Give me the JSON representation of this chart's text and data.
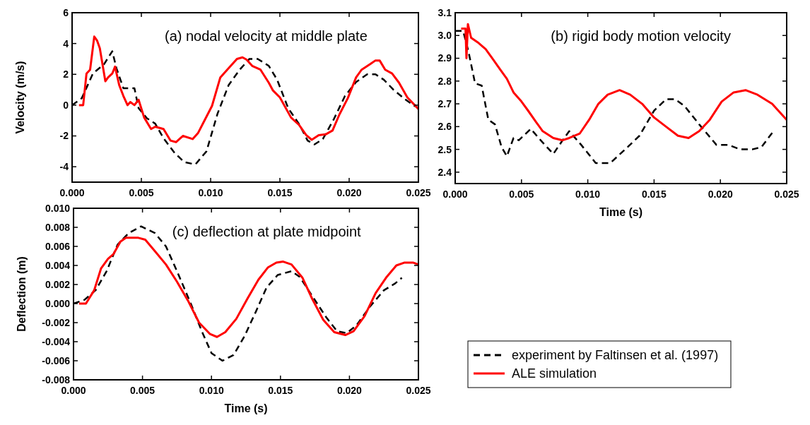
{
  "chart_data": [
    {
      "type": "line",
      "title": "(a) nodal velocity at middle plate",
      "ylabel": "Velocity (m/s)",
      "xlim": [
        0,
        0.025
      ],
      "xticks": [
        {
          "value": 0,
          "label": "0.000"
        },
        {
          "value": 0.005,
          "label": "0.005"
        },
        {
          "value": 0.01,
          "label": "0.010"
        },
        {
          "value": 0.015,
          "label": "0.015"
        },
        {
          "value": 0.02,
          "label": "0.020"
        },
        {
          "value": 0.025,
          "label": "0.025"
        }
      ],
      "ylim": [
        -5,
        6
      ],
      "yticks": [
        -4,
        -2,
        0,
        2,
        4,
        6
      ],
      "grid": false,
      "legend": false,
      "marker": "none",
      "series": [
        {
          "color": "#000000",
          "line_style": "dashed",
          "x": [
            0,
            0.0007,
            0.0015,
            0.0023,
            0.0029,
            0.0032,
            0.0037,
            0.0045,
            0.0048,
            0.0054,
            0.006,
            0.0066,
            0.0074,
            0.0081,
            0.0089,
            0.0097,
            0.0105,
            0.0113,
            0.0121,
            0.0128,
            0.0134,
            0.0142,
            0.0148,
            0.0156,
            0.0164,
            0.017,
            0.0175,
            0.0181,
            0.0189,
            0.0197,
            0.0205,
            0.0213,
            0.0219,
            0.0225,
            0.0232,
            0.024,
            0.0248
          ],
          "values": [
            0,
            0.45,
            2.05,
            2.65,
            3.5,
            2.4,
            1.1,
            1.1,
            -0.2,
            -0.85,
            -1.2,
            -2.15,
            -3.1,
            -3.7,
            -3.85,
            -3.0,
            -0.55,
            1.3,
            2.3,
            3.0,
            3.0,
            2.55,
            1.65,
            -0.2,
            -1.25,
            -2.3,
            -2.55,
            -2.2,
            -0.9,
            0.6,
            1.5,
            2.0,
            2.0,
            1.65,
            1.0,
            0.4,
            -0.1
          ]
        },
        {
          "color": "#ff0000",
          "line_style": "solid",
          "x": [
            0.0005,
            0.0008,
            0.00104,
            0.0013,
            0.0016,
            0.0018,
            0.002,
            0.0024,
            0.0026,
            0.0029,
            0.0031,
            0.0034,
            0.0037,
            0.004,
            0.0042,
            0.0045,
            0.0048,
            0.0052,
            0.0057,
            0.006,
            0.0066,
            0.0071,
            0.0075,
            0.008,
            0.0087,
            0.0091,
            0.0097,
            0.0101,
            0.0107,
            0.0112,
            0.0119,
            0.0123,
            0.0126,
            0.013,
            0.0136,
            0.0142,
            0.0145,
            0.015,
            0.0158,
            0.0164,
            0.0169,
            0.0173,
            0.0178,
            0.0183,
            0.0188,
            0.0193,
            0.0199,
            0.0205,
            0.0209,
            0.0215,
            0.0219,
            0.0222,
            0.0226,
            0.0231,
            0.0236,
            0.0242,
            0.025
          ],
          "values": [
            0,
            0,
            2.05,
            2.3,
            4.45,
            4.2,
            3.7,
            1.55,
            1.8,
            2.05,
            2.5,
            1.3,
            0.6,
            0,
            0.2,
            0,
            0.35,
            -0.8,
            -1.55,
            -1.4,
            -1.55,
            -2.3,
            -2.4,
            -2.0,
            -2.2,
            -1.8,
            -0.75,
            -0.05,
            1.8,
            2.3,
            3.0,
            3.1,
            2.95,
            2.55,
            2.3,
            1.45,
            0.95,
            0.5,
            -0.8,
            -1.3,
            -1.95,
            -2.25,
            -1.95,
            -1.9,
            -1.65,
            -0.6,
            0.45,
            1.8,
            2.3,
            2.65,
            2.9,
            2.9,
            2.3,
            2.05,
            1.45,
            0.5,
            -0.25
          ]
        }
      ]
    },
    {
      "type": "line",
      "title": "(b) rigid body motion velocity",
      "xlabel": "Time (s)",
      "xlim": [
        0,
        0.025
      ],
      "xticks": [
        {
          "value": 0,
          "label": "0.000"
        },
        {
          "value": 0.005,
          "label": "0.005"
        },
        {
          "value": 0.01,
          "label": "0.010"
        },
        {
          "value": 0.015,
          "label": "0.015"
        },
        {
          "value": 0.02,
          "label": "0.020"
        },
        {
          "value": 0.025,
          "label": "0.025"
        }
      ],
      "ylim": [
        2.35,
        3.1
      ],
      "yticks": [
        2.4,
        2.5,
        2.6,
        2.7,
        2.8,
        2.9,
        {
          "value": 3.0,
          "label": "3.0"
        },
        3.1
      ],
      "grid": false,
      "legend": false,
      "marker": "none",
      "series": [
        {
          "color": "#000000",
          "line_style": "dashed",
          "x": [
            0,
            0.0006,
            0.001,
            0.0015,
            0.002,
            0.0025,
            0.003,
            0.0035,
            0.0039,
            0.0044,
            0.0048,
            0.0057,
            0.0066,
            0.0074,
            0.0081,
            0.0086,
            0.0095,
            0.0106,
            0.0117,
            0.013,
            0.0139,
            0.015,
            0.0159,
            0.0166,
            0.0173,
            0.0184,
            0.0197,
            0.0206,
            0.0215,
            0.0224,
            0.0231,
            0.024
          ],
          "values": [
            3.02,
            3.02,
            2.93,
            2.79,
            2.78,
            2.63,
            2.61,
            2.51,
            2.47,
            2.55,
            2.54,
            2.59,
            2.53,
            2.48,
            2.54,
            2.58,
            2.52,
            2.44,
            2.44,
            2.51,
            2.56,
            2.67,
            2.72,
            2.72,
            2.69,
            2.61,
            2.52,
            2.52,
            2.5,
            2.5,
            2.51,
            2.58
          ]
        },
        {
          "color": "#ff0000",
          "line_style": "solid",
          "x": [
            0.00045,
            0.00078,
            0.00085,
            0.00096,
            0.0012,
            0.0017,
            0.0023,
            0.0028,
            0.0034,
            0.0039,
            0.0044,
            0.005,
            0.0055,
            0.0061,
            0.0066,
            0.0074,
            0.0081,
            0.0086,
            0.0094,
            0.0101,
            0.0108,
            0.0115,
            0.0124,
            0.0132,
            0.0141,
            0.015,
            0.0159,
            0.0168,
            0.0176,
            0.0184,
            0.0192,
            0.0201,
            0.021,
            0.0219,
            0.0228,
            0.0239,
            0.025
          ],
          "values": [
            3.03,
            3.03,
            2.9,
            3.05,
            2.99,
            2.97,
            2.94,
            2.9,
            2.85,
            2.81,
            2.75,
            2.71,
            2.67,
            2.62,
            2.58,
            2.55,
            2.54,
            2.55,
            2.57,
            2.63,
            2.7,
            2.74,
            2.76,
            2.74,
            2.7,
            2.64,
            2.6,
            2.56,
            2.55,
            2.58,
            2.63,
            2.71,
            2.75,
            2.76,
            2.74,
            2.7,
            2.63
          ]
        }
      ]
    },
    {
      "type": "line",
      "title": "(c) deflection at plate midpoint",
      "xlabel": "Time (s)",
      "ylabel": "Deflection (m)",
      "xlim": [
        0,
        0.025
      ],
      "xticks": [
        {
          "value": 0,
          "label": "0.000"
        },
        {
          "value": 0.005,
          "label": "0.005"
        },
        {
          "value": 0.01,
          "label": "0.010"
        },
        {
          "value": 0.015,
          "label": "0.015"
        },
        {
          "value": 0.02,
          "label": "0.020"
        },
        {
          "value": 0.025,
          "label": "0.025"
        }
      ],
      "ylim": [
        -0.008,
        0.01
      ],
      "yticks": [
        {
          "value": -0.008,
          "label": "-0.008"
        },
        {
          "value": -0.006,
          "label": "-0.006"
        },
        {
          "value": -0.004,
          "label": "-0.004"
        },
        {
          "value": -0.002,
          "label": "-0.002"
        },
        {
          "value": 0,
          "label": "0.000"
        },
        {
          "value": 0.002,
          "label": "0.002"
        },
        {
          "value": 0.004,
          "label": "0.004"
        },
        {
          "value": 0.006,
          "label": "0.006"
        },
        {
          "value": 0.008,
          "label": "0.008"
        },
        {
          "value": 0.01,
          "label": "0.010"
        }
      ],
      "grid": false,
      "legend": "right",
      "marker": "none",
      "series": [
        {
          "name": "experiment by Faltinsen et al. (1997)",
          "color": "#000000",
          "line_style": "dashed",
          "x": [
            0,
            0.0008,
            0.0016,
            0.0024,
            0.0032,
            0.004,
            0.0049,
            0.0059,
            0.0067,
            0.0075,
            0.0085,
            0.0093,
            0.01,
            0.0108,
            0.0116,
            0.0124,
            0.0132,
            0.014,
            0.0148,
            0.0158,
            0.0164,
            0.0173,
            0.0183,
            0.0191,
            0.0198,
            0.0205,
            0.0215,
            0.0225,
            0.0233,
            0.0238
          ],
          "values": [
            0,
            0.0004,
            0.0014,
            0.0034,
            0.0062,
            0.0074,
            0.0081,
            0.0074,
            0.006,
            0.0034,
            0,
            -0.0029,
            -0.0052,
            -0.006,
            -0.0054,
            -0.0034,
            -0.0009,
            0.0017,
            0.003,
            0.0034,
            0.0028,
            0.0008,
            -0.0014,
            -0.0029,
            -0.0031,
            -0.0023,
            -0.0003,
            0.0014,
            0.0021,
            0.0027
          ]
        },
        {
          "name": "ALE simulation",
          "color": "#ff0000",
          "line_style": "solid",
          "x": [
            0.0004,
            0.0009,
            0.0015,
            0.002,
            0.0025,
            0.0029,
            0.0034,
            0.0038,
            0.0047,
            0.0052,
            0.0059,
            0.0067,
            0.0075,
            0.0083,
            0.0091,
            0.0099,
            0.0104,
            0.011,
            0.0118,
            0.0126,
            0.0134,
            0.0141,
            0.0147,
            0.0152,
            0.0158,
            0.0166,
            0.0173,
            0.0181,
            0.0189,
            0.0197,
            0.0203,
            0.0211,
            0.0219,
            0.0227,
            0.0234,
            0.024,
            0.0246,
            0.025
          ],
          "values": [
            0,
            0,
            0.0014,
            0.0037,
            0.0047,
            0.0052,
            0.0065,
            0.0069,
            0.0069,
            0.0067,
            0.0055,
            0.0041,
            0.0023,
            0.0003,
            -0.002,
            -0.0032,
            -0.0035,
            -0.003,
            -0.0016,
            0.0005,
            0.0025,
            0.0038,
            0.0043,
            0.0044,
            0.0041,
            0.0027,
            0.0005,
            -0.0017,
            -0.003,
            -0.0033,
            -0.0029,
            -0.0013,
            0.0011,
            0.0028,
            0.004,
            0.0043,
            0.0043,
            0.0041
          ]
        }
      ]
    }
  ]
}
